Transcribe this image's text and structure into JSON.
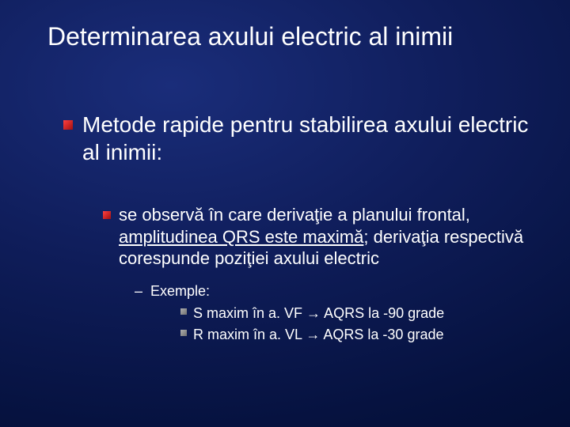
{
  "title": "Determinarea axului electric al inimii",
  "level1": {
    "text": "Metode rapide pentru stabilirea axului electric al inimii:"
  },
  "level2": {
    "part1": "se observă în care derivaţie a planului frontal, ",
    "part2_underlined": "amplitudinea QRS este maximă",
    "part3": "; derivaţia respectivă corespunde poziţiei axului electric"
  },
  "level3": {
    "label": "Exemple:",
    "examples": [
      "S maxim în a. VF → AQRS la -90 grade",
      "R maxim în a. VL → AQRS la -30 grade"
    ]
  },
  "colors": {
    "background_center": "#1a2d7a",
    "background_edge": "#020a2a",
    "text": "#ffffff",
    "bullet_red_light": "#ff4040",
    "bullet_red_dark": "#a01010",
    "bullet_gray_light": "#b0b0b0",
    "bullet_gray_dark": "#707070"
  },
  "fonts": {
    "title_size_pt": 32,
    "level1_size_pt": 28,
    "level2_size_pt": 22,
    "level3_size_pt": 18
  }
}
